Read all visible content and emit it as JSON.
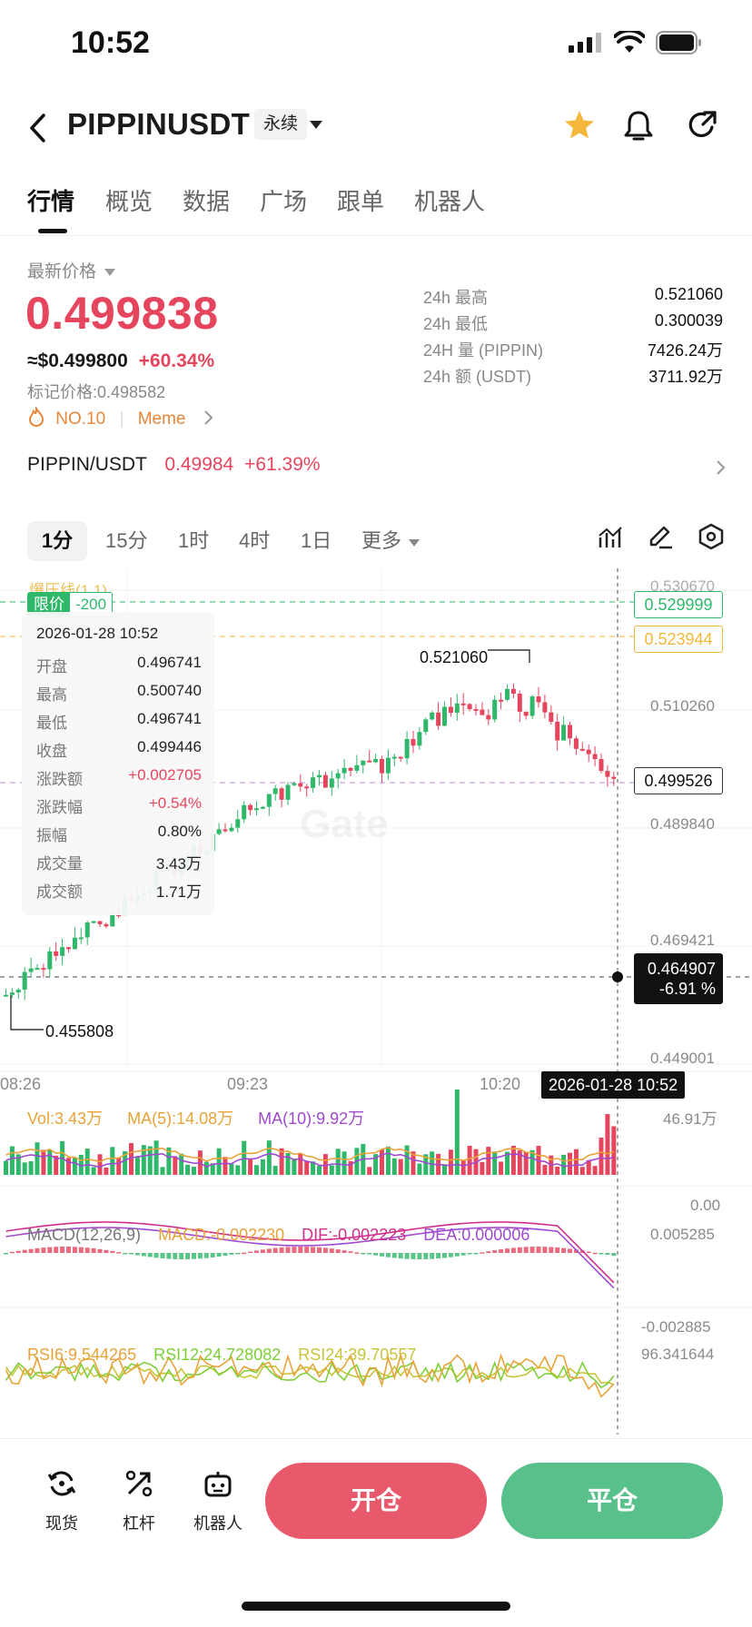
{
  "status_bar": {
    "time": "10:52"
  },
  "header": {
    "symbol": "PIPPINUSDT",
    "contract_type": "永续",
    "icons": [
      "back-icon",
      "star-icon",
      "bell-icon",
      "share-icon"
    ]
  },
  "tabs": [
    {
      "label": "行情",
      "active": true
    },
    {
      "label": "概览"
    },
    {
      "label": "数据"
    },
    {
      "label": "广场"
    },
    {
      "label": "跟单"
    },
    {
      "label": "机器人"
    }
  ],
  "price": {
    "latest_label": "最新价格",
    "last": "0.499838",
    "usd_equiv": "≈$0.499800",
    "change_pct": "+60.34%",
    "mark_price_label": "标记价格:",
    "mark_price": "0.498582",
    "rank_tag": "NO.10",
    "category_tag": "Meme"
  },
  "stats_24h": [
    {
      "label": "24h  最高",
      "value": "0.521060"
    },
    {
      "label": "24h  最低",
      "value": "0.300039"
    },
    {
      "label": "24H  量 (PIPPIN)",
      "value": "7426.24万"
    },
    {
      "label": "24h  额 (USDT)",
      "value": "3711.92万"
    }
  ],
  "spot_pair": {
    "pair": "PIPPIN/USDT",
    "price": "0.49984",
    "change": "+61.39%"
  },
  "timeframes": [
    {
      "label": "1分",
      "active": true
    },
    {
      "label": "15分"
    },
    {
      "label": "1时"
    },
    {
      "label": "4时"
    },
    {
      "label": "1日"
    },
    {
      "label": "更多"
    }
  ],
  "chart": {
    "overlay_label": "爆压线(1.1)",
    "limit_tag": "限价",
    "limit_qty": "-200",
    "watermark": "Gate",
    "y_ticks": [
      "0.530670",
      "0.510260",
      "0.489840",
      "0.469421",
      "0.449001"
    ],
    "x_ticks": [
      "08:26",
      "09:23",
      "10:20"
    ],
    "crosshair_time": "2026-01-28 10:52",
    "tags": {
      "green_line": "0.529999",
      "orange_line": "0.523944",
      "current_price": "0.499526",
      "cursor_price": "0.464907",
      "cursor_pct": "-6.91 %"
    },
    "high_label": "0.521060",
    "low_label": "0.455808",
    "colors": {
      "up": "#2fb76a",
      "down": "#e6455e"
    },
    "tooltip": {
      "date": "2026-01-28 10:52",
      "rows": [
        {
          "k": "开盘",
          "v": "0.496741"
        },
        {
          "k": "最高",
          "v": "0.500740"
        },
        {
          "k": "最低",
          "v": "0.496741"
        },
        {
          "k": "收盘",
          "v": "0.499446"
        },
        {
          "k": "涨跌额",
          "v": "+0.002705",
          "red": true
        },
        {
          "k": "涨跌幅",
          "v": "+0.54%",
          "red": true
        },
        {
          "k": "振幅",
          "v": "0.80%"
        },
        {
          "k": "成交量",
          "v": "3.43万"
        },
        {
          "k": "成交额",
          "v": "1.71万"
        }
      ]
    }
  },
  "volume": {
    "vol": "Vol:3.43万",
    "ma5": "MA(5):14.08万",
    "ma10": "MA(10):9.92万",
    "max": "46.91万",
    "min": "0.00"
  },
  "macd": {
    "params": "MACD(12,26,9)",
    "macd": "MACD:-0.002230",
    "dif": "DIF:-0.002223",
    "dea": "DEA:0.000006",
    "max": "0.005285",
    "min": "-0.002885"
  },
  "rsi": {
    "rsi6": "RSI6:9.544265",
    "rsi12": "RSI12:24.728082",
    "rsi24": "RSI24:39.70557",
    "max": "96.341644"
  },
  "bottom_nav": [
    {
      "label": "现货",
      "icon": "spot-icon"
    },
    {
      "label": "杠杆",
      "icon": "leverage-icon"
    },
    {
      "label": "机器人",
      "icon": "robot-icon"
    }
  ],
  "actions": {
    "open": "开仓",
    "close": "平仓"
  }
}
